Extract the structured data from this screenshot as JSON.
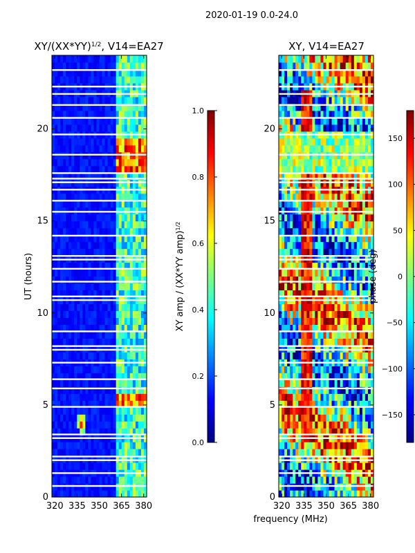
{
  "suptitle": "2020-01-19 0.0-24.0",
  "shared_xlabel": "frequency (MHz)",
  "colors": {
    "jet_stops": [
      "#00007f",
      "#0000ff",
      "#007fff",
      "#00ffff",
      "#7fff7f",
      "#ffff00",
      "#ff7f00",
      "#ff0000",
      "#7f0000"
    ],
    "frame": "#000000",
    "gap": "#ffffff"
  },
  "chart_data": [
    {
      "type": "heatmap",
      "title": "XY/(XX*YY)",
      "title_exp": "1/2",
      "title_suffix": ", V14=EA27",
      "xlabel": "",
      "ylabel": "UT (hours)",
      "xlim": [
        318,
        382
      ],
      "ylim": [
        0,
        24
      ],
      "xticks": [
        320,
        335,
        350,
        365,
        380
      ],
      "yticks": [
        0,
        5,
        10,
        15,
        20
      ],
      "rows": 64,
      "cols": 34,
      "colorbar": {
        "label": "XY amp / (XX*YY amp)",
        "label_exp": "1/2",
        "range": [
          0.0,
          1.0
        ],
        "ticks": [
          "0.0",
          "0.2",
          "0.4",
          "0.6",
          "0.8",
          "1.0"
        ]
      },
      "bright_band_mhz": [
        361,
        382
      ],
      "hotspot": {
        "freq": 338,
        "ut": 4.0
      }
    },
    {
      "type": "heatmap",
      "title": "XY, V14=EA27",
      "xlabel": "frequency (MHz)",
      "ylabel": "",
      "xlim": [
        318,
        382
      ],
      "ylim": [
        0,
        24
      ],
      "xticks": [
        320,
        335,
        350,
        365,
        380
      ],
      "yticks": [
        0,
        5,
        10,
        15,
        20
      ],
      "rows": 64,
      "cols": 34,
      "colorbar": {
        "label": "phase (deg)",
        "range": [
          -180,
          180
        ],
        "ticks": [
          "150",
          "100",
          "50",
          "0",
          "−50",
          "−100",
          "−150"
        ]
      }
    }
  ],
  "gap_rows_ut": [
    0.6,
    1.3,
    2.0,
    2.2,
    3.2,
    3.4,
    4.9,
    5.9,
    6.4,
    7.3,
    8.0,
    8.2,
    9.0,
    10.7,
    10.9,
    11.7,
    12.4,
    12.9,
    13.1,
    14.2,
    15.5,
    16.1,
    16.7,
    17.1,
    17.3,
    17.6,
    18.6,
    19.7,
    20.6,
    21.3,
    21.9,
    22.3,
    23.2
  ]
}
